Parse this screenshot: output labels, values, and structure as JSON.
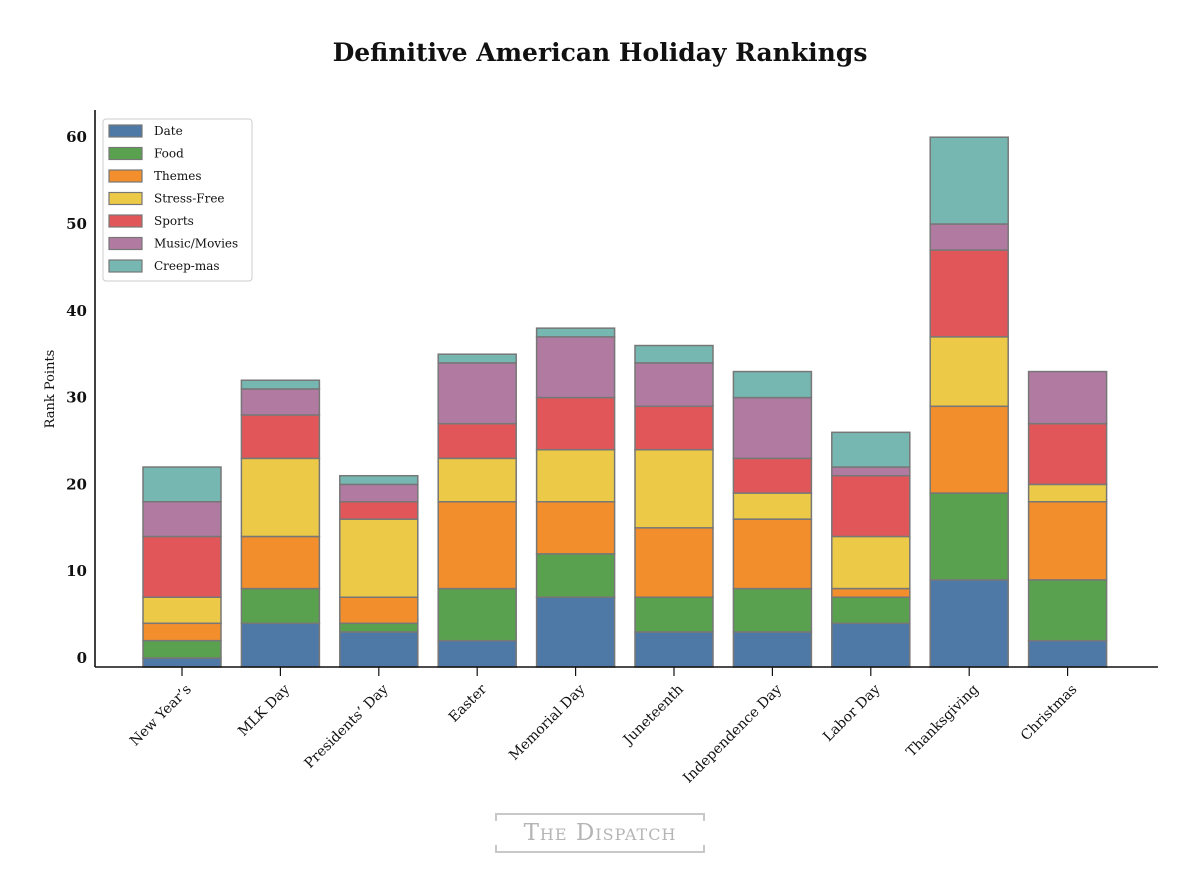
{
  "chart_data": {
    "type": "bar",
    "stacked": true,
    "title": "Definitive American Holiday Rankings",
    "xlabel": "",
    "ylabel": "Rank Points",
    "ylim": [
      -1,
      63
    ],
    "yticks": [
      0,
      10,
      20,
      30,
      40,
      50,
      60
    ],
    "grid": false,
    "legend_position": "top-left",
    "categories": [
      "New Year’s",
      "MLK Day",
      "Presidents’ Day",
      "Easter",
      "Memorial Day",
      "Juneteenth",
      "Independence Day",
      "Labor Day",
      "Thanksgiving",
      "Christmas"
    ],
    "series": [
      {
        "name": "Date",
        "color": "#4e79a7",
        "values": [
          0,
          4,
          3,
          2,
          7,
          3,
          3,
          4,
          9,
          2
        ]
      },
      {
        "name": "Food",
        "color": "#59a14f",
        "values": [
          2,
          4,
          1,
          6,
          5,
          4,
          5,
          3,
          10,
          7
        ]
      },
      {
        "name": "Themes",
        "color": "#f28e2b",
        "values": [
          2,
          6,
          3,
          10,
          6,
          8,
          8,
          1,
          10,
          9
        ]
      },
      {
        "name": "Stress-Free",
        "color": "#edc948",
        "values": [
          3,
          9,
          9,
          5,
          6,
          9,
          3,
          6,
          8,
          2
        ]
      },
      {
        "name": "Sports",
        "color": "#e15759",
        "values": [
          7,
          5,
          2,
          4,
          6,
          5,
          4,
          7,
          10,
          7
        ]
      },
      {
        "name": "Music/Movies",
        "color": "#b07aa1",
        "values": [
          4,
          3,
          2,
          7,
          7,
          5,
          7,
          1,
          3,
          6
        ]
      },
      {
        "name": "Creep-mas",
        "color": "#76b7b2",
        "values": [
          4,
          1,
          1,
          1,
          1,
          2,
          3,
          4,
          10,
          0
        ]
      }
    ]
  },
  "watermark": "The Dispatch"
}
